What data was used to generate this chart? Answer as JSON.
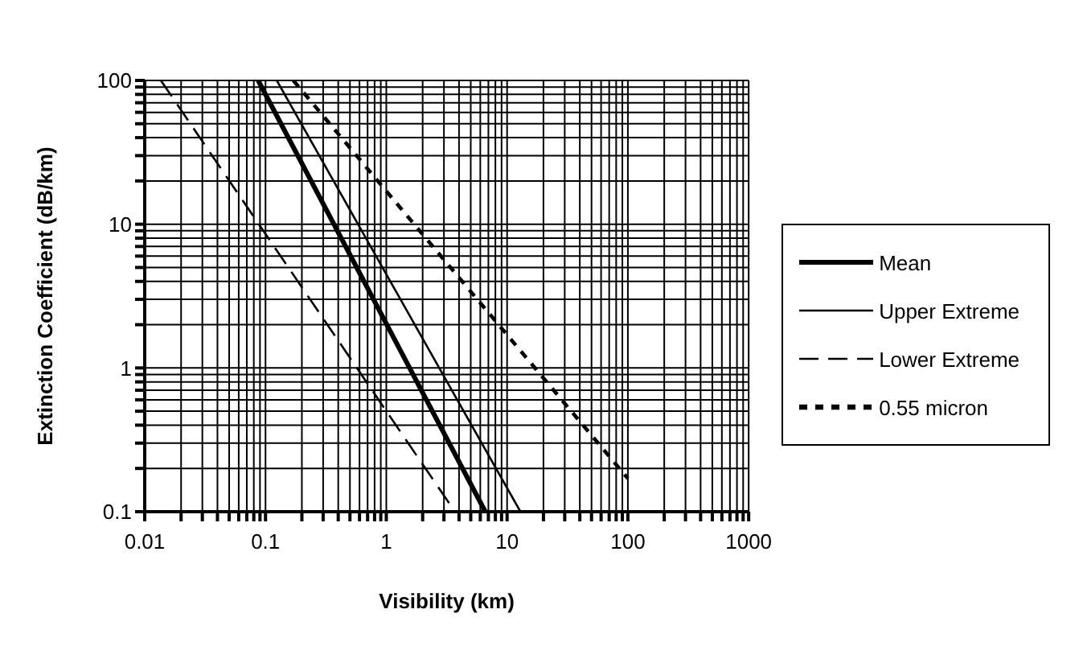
{
  "chart_data": {
    "type": "line",
    "xlabel": "Visibility (km)",
    "ylabel": "Extinction Coefficient (dB/km)",
    "log": "xy",
    "grid": true,
    "legend": "right",
    "marker": "none",
    "xlim": [
      0.01,
      1000
    ],
    "ylim": [
      0.1,
      100
    ],
    "xticks": [
      0.01,
      {
        "value": 0.02,
        "label": null
      },
      {
        "value": 0.03,
        "label": null
      },
      {
        "value": 0.04,
        "label": null
      },
      {
        "value": 0.05,
        "label": null
      },
      {
        "value": 0.06,
        "label": null
      },
      {
        "value": 0.07,
        "label": null
      },
      {
        "value": 0.08,
        "label": null
      },
      {
        "value": 0.09,
        "label": null
      },
      0.1,
      {
        "value": 0.2,
        "label": null
      },
      {
        "value": 0.3,
        "label": null
      },
      {
        "value": 0.4,
        "label": null
      },
      {
        "value": 0.5,
        "label": null
      },
      {
        "value": 0.6,
        "label": null
      },
      {
        "value": 0.7,
        "label": null
      },
      {
        "value": 0.8,
        "label": null
      },
      {
        "value": 0.9,
        "label": null
      },
      1,
      {
        "value": 2,
        "label": null
      },
      {
        "value": 3,
        "label": null
      },
      {
        "value": 4,
        "label": null
      },
      {
        "value": 5,
        "label": null
      },
      {
        "value": 6,
        "label": null
      },
      {
        "value": 7,
        "label": null
      },
      {
        "value": 8,
        "label": null
      },
      {
        "value": 9,
        "label": null
      },
      10,
      {
        "value": 20,
        "label": null
      },
      {
        "value": 30,
        "label": null
      },
      {
        "value": 40,
        "label": null
      },
      {
        "value": 50,
        "label": null
      },
      {
        "value": 60,
        "label": null
      },
      {
        "value": 70,
        "label": null
      },
      {
        "value": 80,
        "label": null
      },
      {
        "value": 90,
        "label": null
      },
      100,
      {
        "value": 200,
        "label": null
      },
      {
        "value": 300,
        "label": null
      },
      {
        "value": 400,
        "label": null
      },
      {
        "value": 500,
        "label": null
      },
      {
        "value": 600,
        "label": null
      },
      {
        "value": 700,
        "label": null
      },
      {
        "value": 800,
        "label": null
      },
      {
        "value": 900,
        "label": null
      },
      1000
    ],
    "yticks": [
      0.1,
      {
        "value": 0.2,
        "label": null
      },
      {
        "value": 0.3,
        "label": null
      },
      {
        "value": 0.4,
        "label": null
      },
      {
        "value": 0.5,
        "label": null
      },
      {
        "value": 0.6,
        "label": null
      },
      {
        "value": 0.7,
        "label": null
      },
      {
        "value": 0.8,
        "label": null
      },
      {
        "value": 0.9,
        "label": null
      },
      1,
      {
        "value": 2,
        "label": null
      },
      {
        "value": 3,
        "label": null
      },
      {
        "value": 4,
        "label": null
      },
      {
        "value": 5,
        "label": null
      },
      {
        "value": 6,
        "label": null
      },
      {
        "value": 7,
        "label": null
      },
      {
        "value": 8,
        "label": null
      },
      {
        "value": 9,
        "label": null
      },
      10,
      {
        "value": 20,
        "label": null
      },
      {
        "value": 30,
        "label": null
      },
      {
        "value": 40,
        "label": null
      },
      {
        "value": 50,
        "label": null
      },
      {
        "value": 60,
        "label": null
      },
      {
        "value": 70,
        "label": null
      },
      {
        "value": 80,
        "label": null
      },
      {
        "value": 90,
        "label": null
      },
      100
    ],
    "series": [
      {
        "name": "Mean",
        "color": "#000000",
        "line_style": "solid",
        "x": [
          0.087,
          6.6
        ],
        "values": [
          100,
          0.1
        ]
      },
      {
        "name": "Upper Extreme",
        "color": "#000000",
        "line_style": "solid",
        "x": [
          0.124,
          12.9
        ],
        "values": [
          100,
          0.1
        ]
      },
      {
        "name": "Lower Extreme",
        "color": "#000000",
        "line_style": "dashed",
        "x": [
          0.0136,
          3.7
        ],
        "values": [
          100,
          0.1
        ]
      },
      {
        "name": "0.55 micron",
        "color": "#000000",
        "line_style": "dotted",
        "x": [
          0.17,
          100
        ],
        "values": [
          100,
          0.17
        ]
      }
    ]
  }
}
